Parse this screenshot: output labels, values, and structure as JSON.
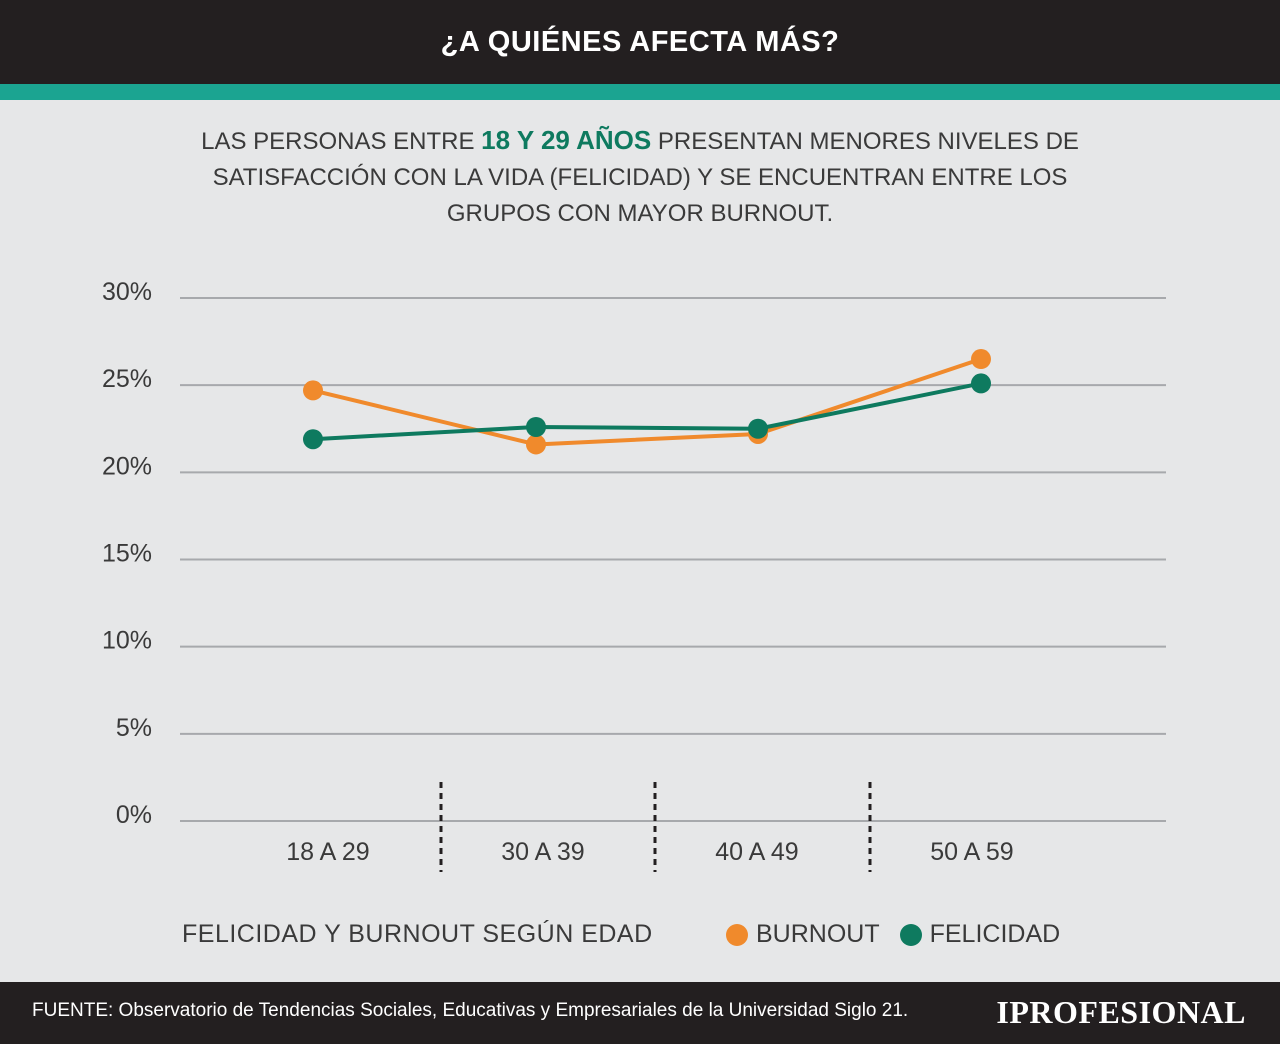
{
  "header": {
    "title": "¿A QUIÉNES AFECTA MÁS?"
  },
  "subtitle": {
    "part1": "LAS PERSONAS ENTRE ",
    "highlight": "18 Y 29 AÑOS",
    "part2": " PRESENTAN MENORES NIVELES DE SATISFACCIÓN CON LA VIDA (FELICIDAD) Y SE ENCUENTRAN ENTRE LOS GRUPOS CON MAYOR BURNOUT."
  },
  "colors": {
    "header_bg": "#231f20",
    "accent": "#1ba491",
    "burnout": "#f08a2c",
    "felicidad": "#0e7a5f",
    "grid": "#a7a9ac",
    "background": "#e6e7e8"
  },
  "chart_data": {
    "type": "line",
    "caption": "FELICIDAD Y BURNOUT SEGÚN EDAD",
    "categories": [
      "18 A 29",
      "30 A 39",
      "40 A 49",
      "50 A 59"
    ],
    "yticks": [
      "0%",
      "5%",
      "10%",
      "15%",
      "20%",
      "25%",
      "30%"
    ],
    "ylim": [
      0,
      30
    ],
    "grid": true,
    "legend_position": "bottom-right",
    "series": [
      {
        "name": "BURNOUT",
        "color": "#f08a2c",
        "values": [
          24.7,
          21.6,
          22.2,
          26.5
        ]
      },
      {
        "name": "FELICIDAD",
        "color": "#0e7a5f",
        "values": [
          21.9,
          22.6,
          22.5,
          25.1
        ]
      }
    ]
  },
  "footer": {
    "source": "FUENTE:  Observatorio de Tendencias Sociales, Educativas y Empresariales de la Universidad Siglo 21.",
    "logo": "IPROFESIONAL"
  }
}
